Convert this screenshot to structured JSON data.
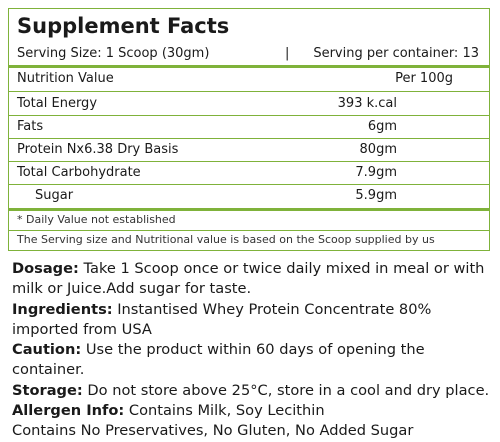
{
  "panel": {
    "title": "Supplement Facts",
    "serving_size": "Serving Size: 1 Scoop (30gm)",
    "separator": "|",
    "servings_per_container": "Serving per container: 13",
    "header": [
      "Nutrition Value",
      "Per 100g"
    ],
    "rows": [
      [
        "Total Energy",
        "393 k.cal"
      ],
      [
        "Fats",
        "6gm"
      ],
      [
        "Protein Nx6.38 Dry Basis",
        "80gm"
      ],
      [
        "Total Carbohydrate",
        "7.9gm"
      ],
      [
        "Sugar",
        "5.9gm"
      ]
    ],
    "footnotes": [
      "* Daily Value not established",
      "The Serving size and Nutritional value is based on the Scoop supplied by us"
    ]
  },
  "details": [
    {
      "label": "Dosage:",
      "text": "Take 1 Scoop once or twice daily mixed in meal or with milk or Juice.Add sugar for taste."
    },
    {
      "label": "Ingredients:",
      "text": "Instantised Whey Protein Concentrate 80% imported from USA"
    },
    {
      "label": "Caution:",
      "text": "Use the product within 60 days of opening the container."
    },
    {
      "label": "Storage:",
      "text": "Do not store above 25°C, store in a cool and dry place."
    },
    {
      "label": "Allergen Info:",
      "text": "Contains Milk, Soy Lecithin"
    },
    {
      "text": "Contains No Preservatives, No Gluten, No Added Sugar"
    }
  ]
}
